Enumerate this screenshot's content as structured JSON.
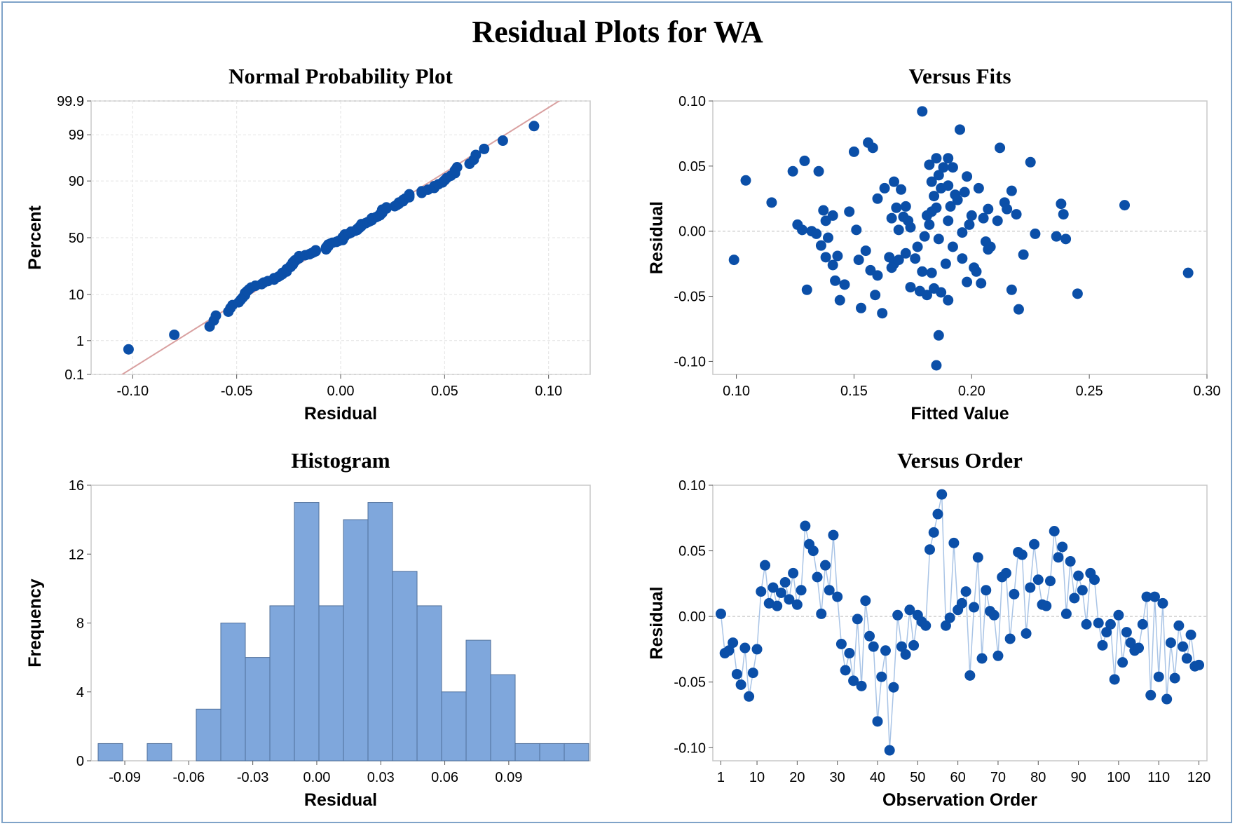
{
  "title": "Residual Plots for WA",
  "colors": {
    "marker": "#0b4fa8",
    "bar_fill": "#7fa7dc",
    "bar_edge": "#4f6f9a",
    "fit_line": "#d9a0a0",
    "order_line": "#a9c4e6",
    "grid": "#e3e3e3",
    "frame": "#c8c8c8"
  },
  "chart_data": [
    {
      "id": "npp",
      "type": "scatter",
      "title": "Normal Probability Plot",
      "xlabel": "Residual",
      "ylabel": "Percent",
      "xlim": [
        -0.12,
        0.12
      ],
      "xticks": [
        -0.1,
        -0.05,
        0.0,
        0.05,
        0.1
      ],
      "xtick_labels": [
        "-0.10",
        "-0.05",
        "0.00",
        "0.05",
        "0.10"
      ],
      "yscale": "normal-probability",
      "ylim": [
        0.1,
        99.9
      ],
      "yticks": [
        0.1,
        1,
        10,
        50,
        90,
        99,
        99.9
      ],
      "ytick_labels": [
        "0.1",
        "1",
        "10",
        "50",
        "90",
        "99",
        "99.9"
      ],
      "fit_line": {
        "slope_sd": 0.034,
        "mean": 0.0
      },
      "n_points": 120,
      "highlight_points": [
        [
          -0.102,
          0.6
        ],
        [
          -0.08,
          1.3
        ],
        [
          0.078,
          98.7
        ],
        [
          0.094,
          99.4
        ]
      ]
    },
    {
      "id": "fits",
      "type": "scatter",
      "title": "Versus Fits",
      "xlabel": "Fitted Value",
      "ylabel": "Residual",
      "xlim": [
        0.09,
        0.3
      ],
      "ylim": [
        -0.11,
        0.1
      ],
      "xticks": [
        0.1,
        0.15,
        0.2,
        0.25,
        0.3
      ],
      "xtick_labels": [
        "0.10",
        "0.15",
        "0.20",
        "0.25",
        "0.30"
      ],
      "yticks": [
        -0.1,
        -0.05,
        0.0,
        0.05,
        0.1
      ],
      "ytick_labels": [
        "-0.10",
        "-0.05",
        "0.00",
        "0.05",
        "0.10"
      ],
      "reference_line": 0.0,
      "points": [
        [
          0.099,
          -0.022
        ],
        [
          0.104,
          0.039
        ],
        [
          0.115,
          0.022
        ],
        [
          0.124,
          0.046
        ],
        [
          0.126,
          0.005
        ],
        [
          0.128,
          0.001
        ],
        [
          0.129,
          0.054
        ],
        [
          0.13,
          -0.045
        ],
        [
          0.132,
          0.0
        ],
        [
          0.134,
          -0.002
        ],
        [
          0.135,
          0.046
        ],
        [
          0.136,
          -0.011
        ],
        [
          0.137,
          0.016
        ],
        [
          0.138,
          0.008
        ],
        [
          0.138,
          -0.02
        ],
        [
          0.139,
          -0.005
        ],
        [
          0.141,
          -0.026
        ],
        [
          0.141,
          0.012
        ],
        [
          0.142,
          -0.038
        ],
        [
          0.143,
          -0.019
        ],
        [
          0.144,
          -0.053
        ],
        [
          0.148,
          0.015
        ],
        [
          0.15,
          0.061
        ],
        [
          0.151,
          0.001
        ],
        [
          0.152,
          -0.022
        ],
        [
          0.153,
          -0.059
        ],
        [
          0.155,
          -0.015
        ],
        [
          0.156,
          0.068
        ],
        [
          0.157,
          -0.03
        ],
        [
          0.158,
          0.064
        ],
        [
          0.159,
          -0.049
        ],
        [
          0.16,
          -0.034
        ],
        [
          0.162,
          -0.063
        ],
        [
          0.163,
          0.033
        ],
        [
          0.165,
          -0.02
        ],
        [
          0.166,
          0.01
        ],
        [
          0.167,
          0.038
        ],
        [
          0.167,
          -0.025
        ],
        [
          0.168,
          0.018
        ],
        [
          0.169,
          0.001
        ],
        [
          0.169,
          -0.022
        ],
        [
          0.17,
          0.032
        ],
        [
          0.171,
          0.011
        ],
        [
          0.172,
          0.019
        ],
        [
          0.173,
          0.008
        ],
        [
          0.174,
          -0.043
        ],
        [
          0.176,
          -0.021
        ],
        [
          0.177,
          -0.012
        ],
        [
          0.178,
          -0.046
        ],
        [
          0.179,
          -0.031
        ],
        [
          0.179,
          0.092
        ],
        [
          0.18,
          -0.004
        ],
        [
          0.181,
          0.012
        ],
        [
          0.181,
          -0.049
        ],
        [
          0.182,
          0.005
        ],
        [
          0.182,
          0.051
        ],
        [
          0.183,
          0.038
        ],
        [
          0.183,
          -0.032
        ],
        [
          0.184,
          0.027
        ],
        [
          0.184,
          -0.044
        ],
        [
          0.185,
          0.056
        ],
        [
          0.185,
          0.018
        ],
        [
          0.185,
          -0.103
        ],
        [
          0.186,
          -0.006
        ],
        [
          0.186,
          -0.08
        ],
        [
          0.187,
          0.033
        ],
        [
          0.187,
          -0.047
        ],
        [
          0.188,
          0.049
        ],
        [
          0.189,
          -0.025
        ],
        [
          0.19,
          0.056
        ],
        [
          0.19,
          0.008
        ],
        [
          0.19,
          -0.053
        ],
        [
          0.191,
          0.019
        ],
        [
          0.192,
          0.049
        ],
        [
          0.192,
          -0.012
        ],
        [
          0.193,
          0.028
        ],
        [
          0.194,
          0.024
        ],
        [
          0.195,
          0.078
        ],
        [
          0.196,
          -0.001
        ],
        [
          0.197,
          0.03
        ],
        [
          0.198,
          0.042
        ],
        [
          0.198,
          -0.039
        ],
        [
          0.199,
          0.005
        ],
        [
          0.2,
          0.012
        ],
        [
          0.201,
          -0.028
        ],
        [
          0.202,
          -0.031
        ],
        [
          0.203,
          0.033
        ],
        [
          0.205,
          0.01
        ],
        [
          0.206,
          -0.008
        ],
        [
          0.207,
          0.017
        ],
        [
          0.207,
          -0.014
        ],
        [
          0.208,
          -0.012
        ],
        [
          0.212,
          0.064
        ],
        [
          0.214,
          0.022
        ],
        [
          0.215,
          0.017
        ],
        [
          0.217,
          0.031
        ],
        [
          0.217,
          -0.045
        ],
        [
          0.219,
          0.013
        ],
        [
          0.22,
          -0.06
        ],
        [
          0.222,
          -0.018
        ],
        [
          0.225,
          0.053
        ],
        [
          0.227,
          -0.002
        ],
        [
          0.236,
          -0.004
        ],
        [
          0.238,
          0.021
        ],
        [
          0.239,
          0.013
        ],
        [
          0.24,
          -0.006
        ],
        [
          0.245,
          -0.048
        ],
        [
          0.265,
          0.02
        ],
        [
          0.292,
          -0.032
        ],
        [
          0.186,
          0.043
        ],
        [
          0.174,
          0.003
        ],
        [
          0.16,
          0.025
        ],
        [
          0.146,
          -0.041
        ],
        [
          0.196,
          -0.021
        ],
        [
          0.211,
          0.008
        ],
        [
          0.183,
          0.015
        ],
        [
          0.172,
          -0.017
        ],
        [
          0.19,
          0.035
        ],
        [
          0.166,
          -0.028
        ],
        [
          0.204,
          -0.04
        ]
      ]
    },
    {
      "id": "hist",
      "type": "bar",
      "title": "Histogram",
      "xlabel": "Residual",
      "ylabel": "Frequency",
      "bin_width": 0.0115,
      "bin_start": -0.1025,
      "values": [
        1,
        0,
        1,
        0,
        3,
        8,
        6,
        9,
        15,
        9,
        14,
        15,
        11,
        9,
        4,
        7,
        5,
        1,
        1,
        1
      ],
      "ylim": [
        0,
        16
      ],
      "yticks": [
        0,
        4,
        8,
        12,
        16
      ],
      "ytick_labels": [
        "0",
        "4",
        "8",
        "12",
        "16"
      ],
      "xticks": [
        -0.09,
        -0.06,
        -0.03,
        0.0,
        0.03,
        0.06,
        0.09
      ],
      "xtick_labels": [
        "-0.09",
        "-0.06",
        "-0.03",
        "0.00",
        "0.03",
        "0.06",
        "0.09"
      ]
    },
    {
      "id": "order",
      "type": "line",
      "title": "Versus Order",
      "xlabel": "Observation Order",
      "ylabel": "Residual",
      "xlim": [
        -1,
        122
      ],
      "ylim": [
        -0.11,
        0.1
      ],
      "xticks": [
        1,
        10,
        20,
        30,
        40,
        50,
        60,
        70,
        80,
        90,
        100,
        110,
        120
      ],
      "xtick_labels": [
        "1",
        "10",
        "20",
        "30",
        "40",
        "50",
        "60",
        "70",
        "80",
        "90",
        "100",
        "110",
        "120"
      ],
      "yticks": [
        -0.1,
        -0.05,
        0.0,
        0.05,
        0.1
      ],
      "ytick_labels": [
        "-0.10",
        "-0.05",
        "0.00",
        "0.05",
        "0.10"
      ],
      "reference_line": 0.0,
      "values": [
        0.002,
        -0.028,
        -0.026,
        -0.02,
        -0.044,
        -0.052,
        -0.024,
        -0.061,
        -0.043,
        -0.025,
        0.019,
        0.039,
        0.01,
        0.022,
        0.008,
        0.018,
        0.026,
        0.013,
        0.033,
        0.009,
        0.02,
        0.069,
        0.055,
        0.05,
        0.03,
        0.002,
        0.039,
        0.02,
        0.062,
        0.015,
        -0.021,
        -0.041,
        -0.028,
        -0.049,
        -0.002,
        -0.053,
        0.012,
        -0.015,
        -0.023,
        -0.08,
        -0.046,
        -0.026,
        -0.102,
        -0.054,
        0.001,
        -0.023,
        -0.029,
        0.005,
        -0.022,
        0.001,
        -0.004,
        -0.007,
        0.051,
        0.064,
        0.078,
        0.093,
        -0.007,
        -0.001,
        0.056,
        0.005,
        0.01,
        0.019,
        -0.045,
        0.007,
        0.045,
        -0.032,
        0.02,
        0.004,
        0.001,
        -0.03,
        0.03,
        0.033,
        -0.017,
        0.017,
        0.049,
        0.047,
        -0.013,
        0.022,
        0.055,
        0.028,
        0.009,
        0.008,
        0.027,
        0.065,
        0.045,
        0.053,
        0.002,
        0.042,
        0.014,
        0.031,
        0.02,
        -0.006,
        0.033,
        0.028,
        -0.005,
        -0.022,
        -0.012,
        -0.006,
        -0.048,
        0.001,
        -0.035,
        -0.012,
        -0.02,
        -0.026,
        -0.024,
        -0.006,
        0.015,
        -0.06,
        0.015,
        -0.046,
        0.01,
        -0.063,
        -0.02,
        -0.047,
        -0.007,
        -0.023,
        -0.032,
        -0.014,
        -0.038,
        -0.037
      ]
    }
  ]
}
